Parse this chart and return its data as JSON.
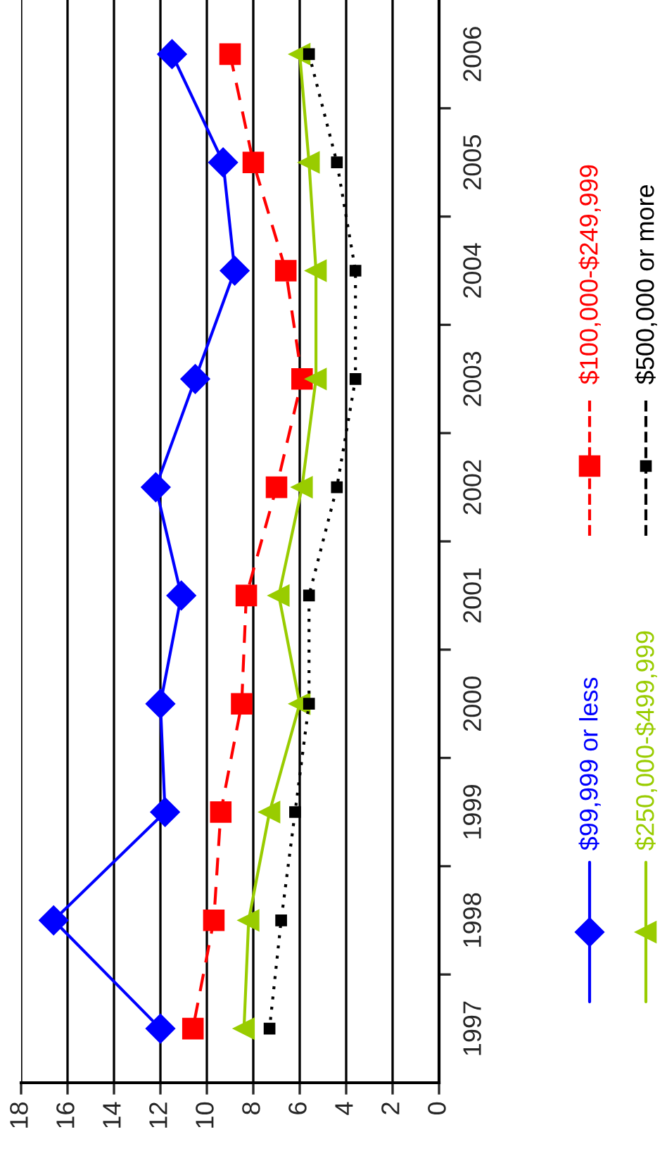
{
  "chart_data": {
    "type": "line",
    "orientation": "horizontal",
    "categories": [
      "2006",
      "2005",
      "2004",
      "2003",
      "2002",
      "2001",
      "2000",
      "1999",
      "1998",
      "1997"
    ],
    "xlim": [
      18,
      0
    ],
    "xticks": [
      18,
      16,
      14,
      12,
      10,
      8,
      6,
      4,
      2,
      0
    ],
    "grid": "x",
    "legend": "right",
    "series": [
      {
        "name": "$99,999 or less",
        "color": "#0000ff",
        "marker": "diamond",
        "line_style": "solid",
        "values": [
          11.5,
          9.3,
          8.8,
          10.5,
          12.2,
          11.1,
          12.0,
          11.8,
          16.6,
          12.0
        ]
      },
      {
        "name": "$100,000-$249,999",
        "color": "#ff0000",
        "marker": "square",
        "line_style": "dashed",
        "values": [
          9.0,
          8.0,
          6.6,
          5.9,
          7.0,
          8.3,
          8.5,
          9.4,
          9.7,
          10.6
        ]
      },
      {
        "name": "$250,000-$499,999",
        "color": "#99cc00",
        "marker": "triangle",
        "line_style": "solid",
        "values": [
          6.0,
          5.6,
          5.3,
          5.3,
          5.9,
          6.9,
          6.0,
          7.3,
          8.2,
          8.4
        ]
      },
      {
        "name": "$500,000 or more",
        "color": "#000000",
        "marker": "square",
        "line_style": "dotted",
        "values": [
          5.6,
          4.4,
          3.6,
          3.6,
          4.4,
          5.6,
          5.6,
          6.2,
          6.8,
          7.3
        ]
      }
    ]
  }
}
